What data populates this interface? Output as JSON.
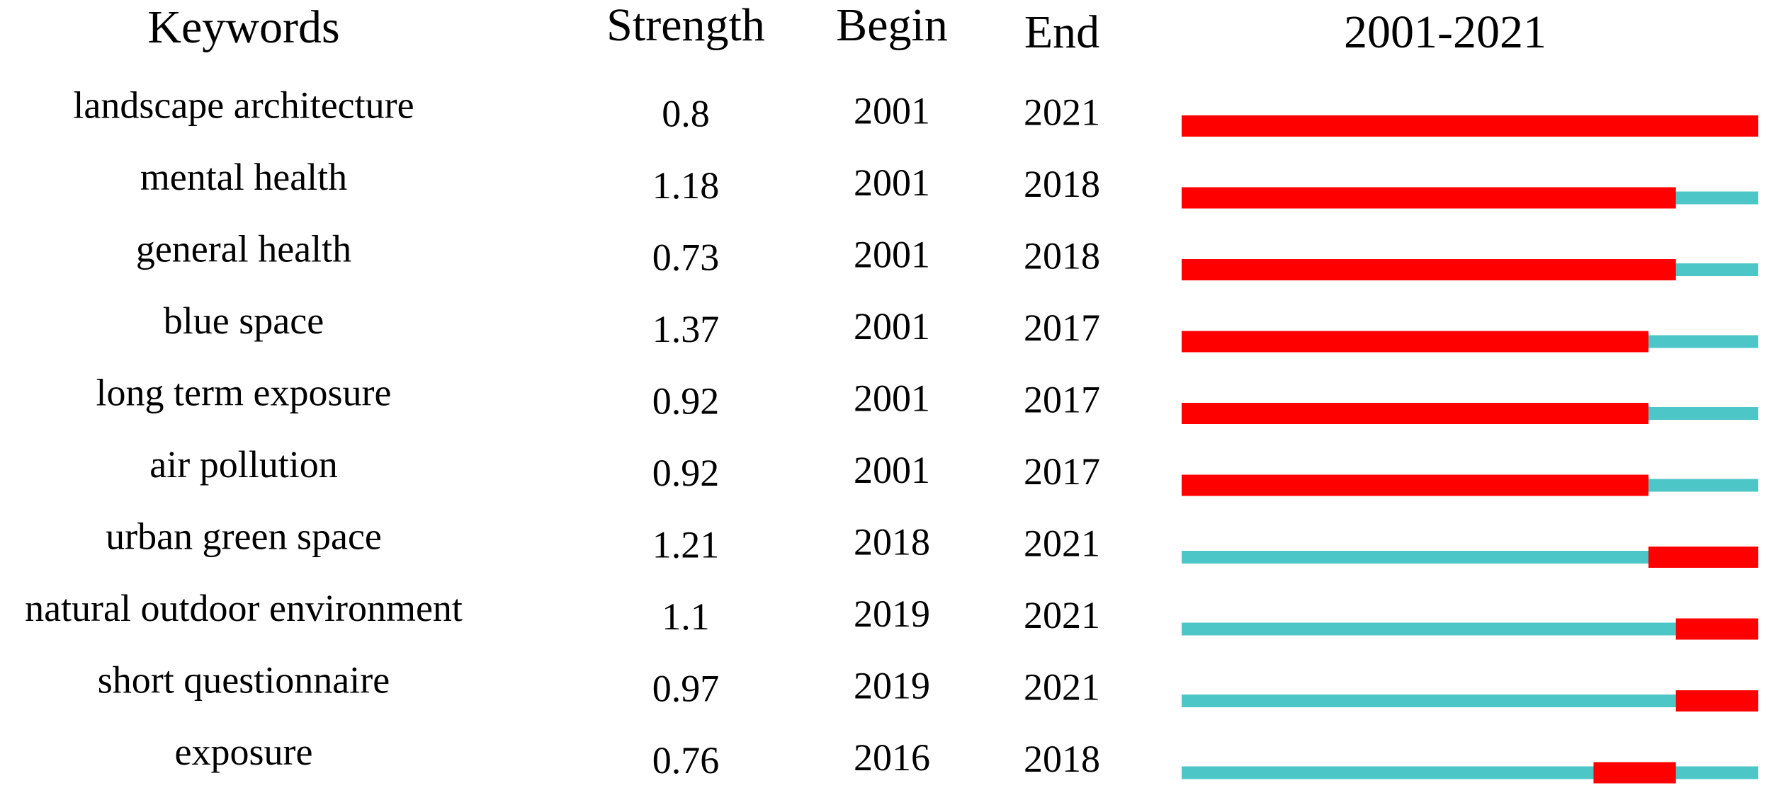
{
  "table": {
    "headers": [
      "Keywords",
      "Strength",
      "Begin",
      "End",
      "2001-2021"
    ],
    "rows": [
      [
        "landscape architecture",
        0.8,
        2001,
        2021
      ],
      [
        "mental health",
        1.18,
        2001,
        2018
      ],
      [
        "general health",
        0.73,
        2001,
        2018
      ],
      [
        "blue space",
        1.37,
        2001,
        2017
      ],
      [
        "long term exposure",
        0.92,
        2001,
        2017
      ],
      [
        "air pollution",
        0.92,
        2001,
        2017
      ],
      [
        "urban green space",
        1.21,
        2018,
        2021
      ],
      [
        "natural outdoor environment",
        1.1,
        2019,
        2021
      ],
      [
        "short questionnaire",
        0.97,
        2019,
        2021
      ],
      [
        "exposure",
        0.76,
        2016,
        2018
      ]
    ]
  }
}
